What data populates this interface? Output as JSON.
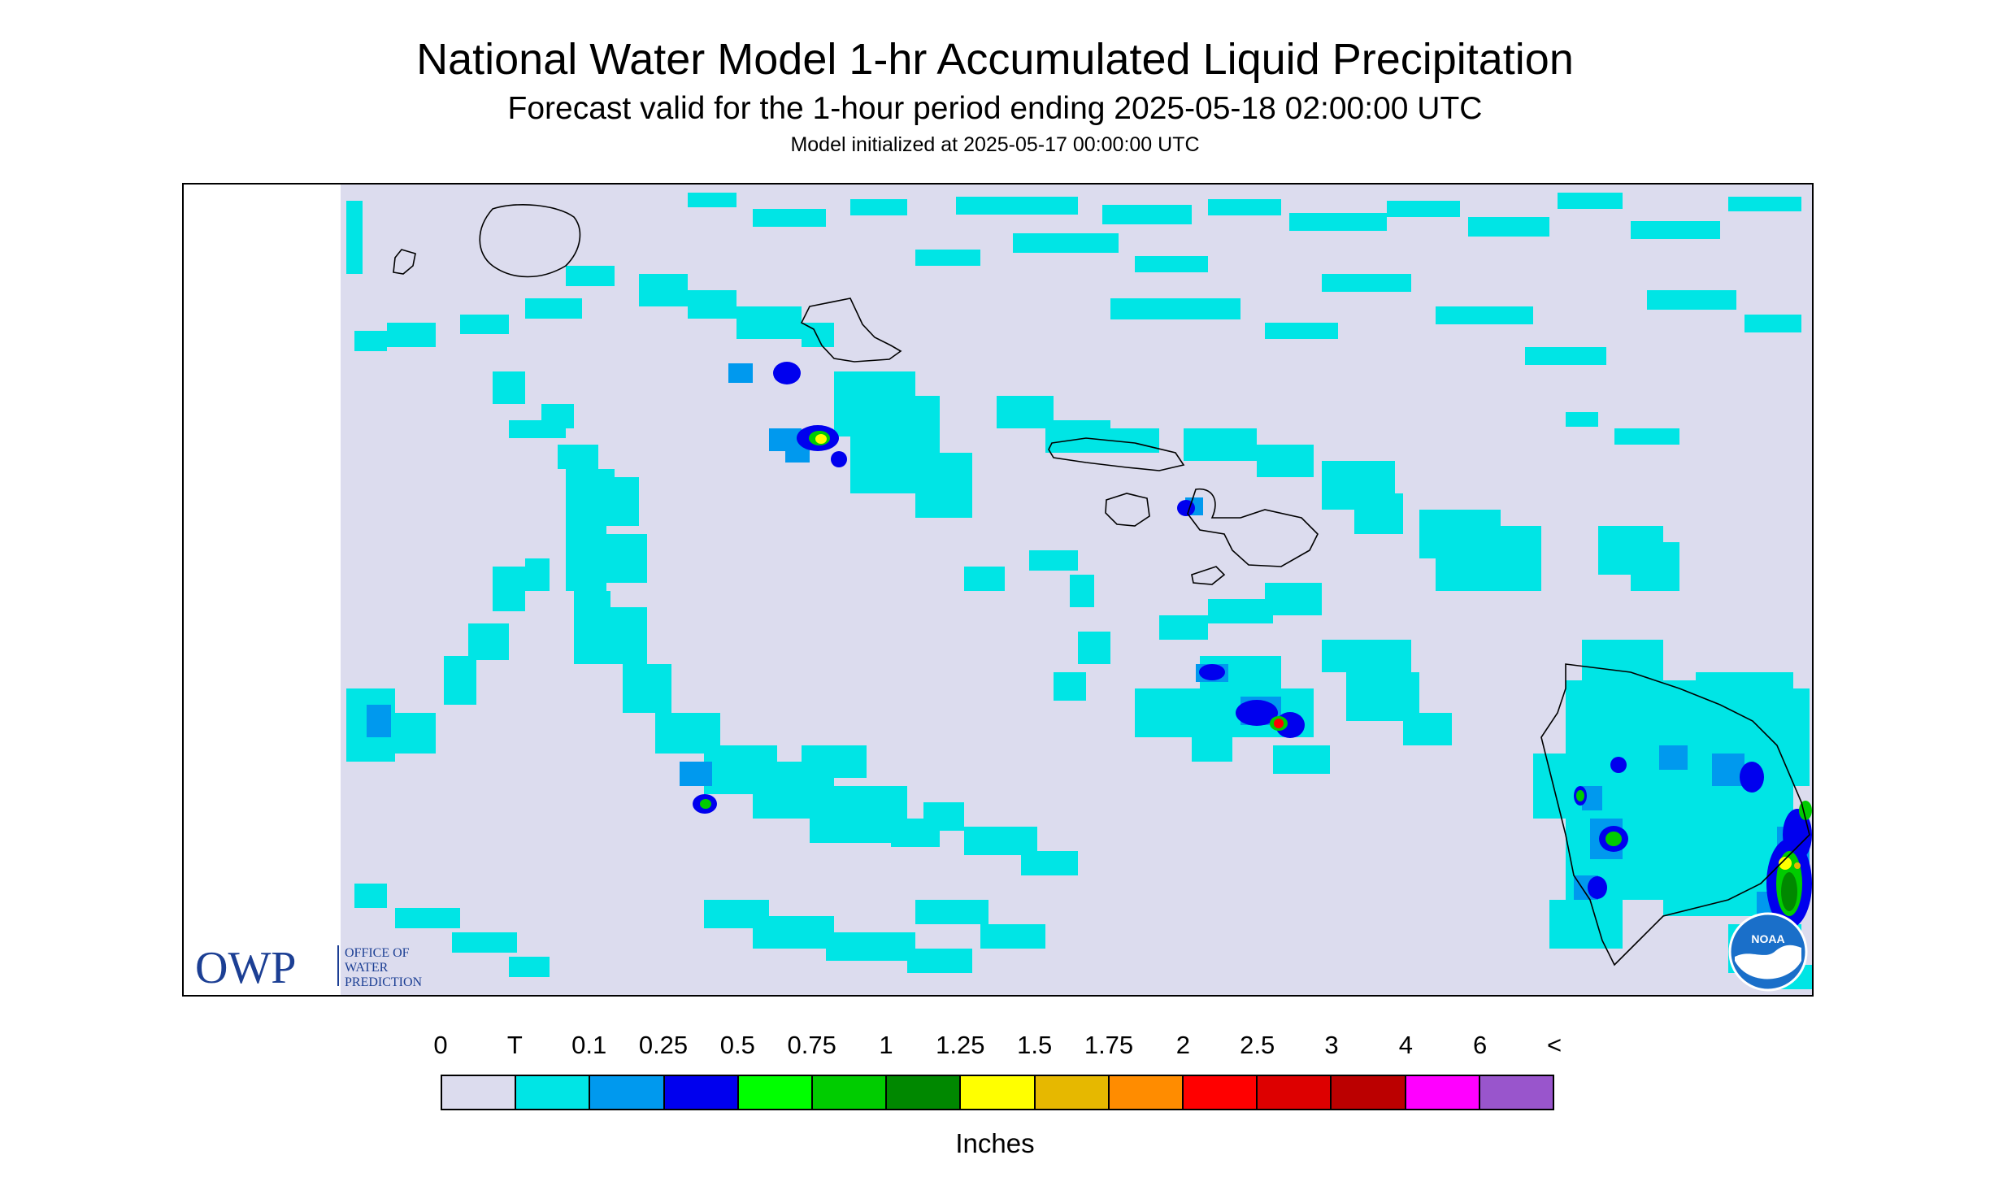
{
  "header": {
    "title": "National Water Model 1-hr Accumulated Liquid Precipitation",
    "subtitle": "Forecast valid for the 1-hour period ending 2025-05-18 02:00:00 UTC",
    "init_line": "Model initialized at 2025-05-17 00:00:00 UTC"
  },
  "map": {
    "background_color": "#dcdcee",
    "outline_color": "#000000",
    "region": "Hawaiian Islands",
    "features": [
      "Kauai",
      "Niihau",
      "Oahu",
      "Molokai",
      "Lanai",
      "Maui",
      "Kahoolawe",
      "Hawaii"
    ]
  },
  "logos": {
    "owp_text": "OWP",
    "owp_line1": "OFFICE OF",
    "owp_line2": "WATER",
    "owp_line3": "PREDICTION",
    "owp_color": "#1c3f94",
    "noaa_text": "NOAA",
    "noaa_color": "#1a6fc9"
  },
  "legend": {
    "labels": [
      "0",
      "T",
      "0.1",
      "0.25",
      "0.5",
      "0.75",
      "1",
      "1.25",
      "1.5",
      "1.75",
      "2",
      "2.5",
      "3",
      "4",
      "6",
      "<"
    ],
    "colors": [
      "#dcdcee",
      "#00e5e5",
      "#0099ee",
      "#0000ee",
      "#00ff00",
      "#00cc00",
      "#008800",
      "#ffff00",
      "#e6b800",
      "#ff8c00",
      "#ff0000",
      "#dd0000",
      "#bb0000",
      "#ff00ff",
      "#9955cc"
    ],
    "unit": "Inches"
  }
}
